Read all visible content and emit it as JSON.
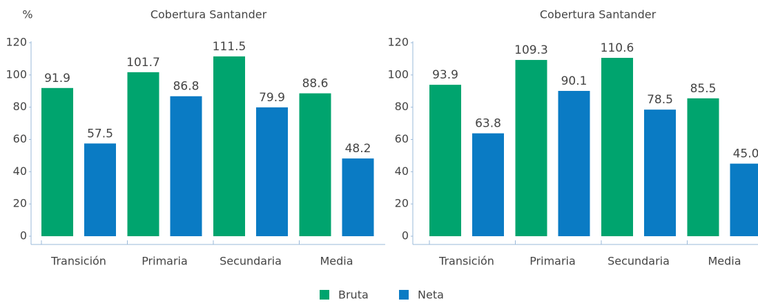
{
  "chart_data": [
    {
      "type": "bar",
      "title": "Cobertura Santander",
      "y_label": "%",
      "categories": [
        "Transición",
        "Primaria",
        "Secundaria",
        "Media"
      ],
      "series": [
        {
          "name": "Bruta",
          "color": "#00a46e",
          "values": [
            91.9,
            101.7,
            111.5,
            88.6
          ]
        },
        {
          "name": "Neta",
          "color": "#0a7bc4",
          "values": [
            57.5,
            86.8,
            79.9,
            48.2
          ]
        }
      ],
      "ylim": [
        0,
        120
      ],
      "yticks": [
        0,
        20,
        40,
        60,
        80,
        100,
        120
      ],
      "grid": false
    },
    {
      "type": "bar",
      "title": "Cobertura Santander",
      "categories": [
        "Transición",
        "Primaria",
        "Secundaria",
        "Media"
      ],
      "series": [
        {
          "color": "#00a46e",
          "values": [
            93.9,
            109.3,
            110.6,
            85.5
          ]
        },
        {
          "color": "#0a7bc4",
          "values": [
            63.8,
            90.1,
            78.5,
            45.0
          ],
          "value_labels": [
            "63.8",
            "90.1",
            "78.5",
            "45.0"
          ]
        }
      ],
      "ylim": [
        0,
        120
      ],
      "yticks": [
        0,
        20,
        40,
        60,
        80,
        100,
        120
      ],
      "grid": false
    }
  ]
}
